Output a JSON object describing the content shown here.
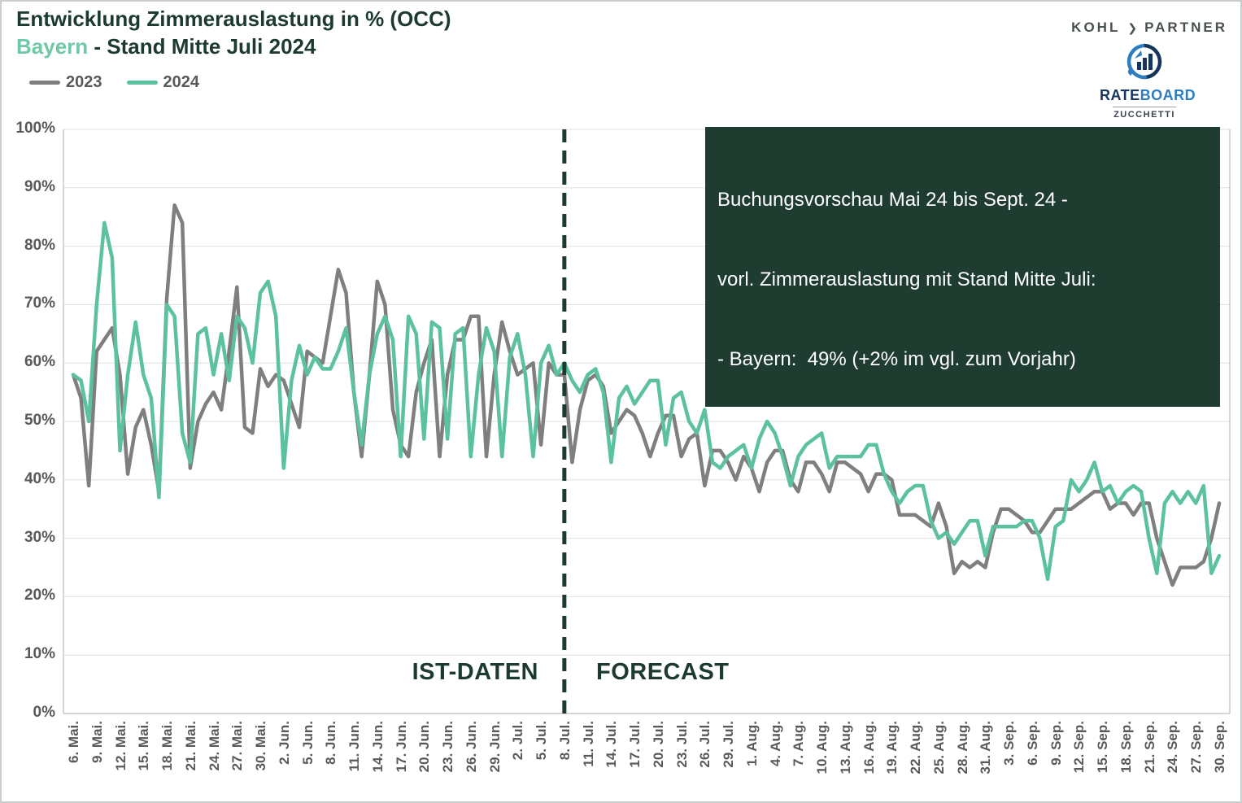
{
  "header": {
    "title": "Entwicklung Zimmerauslastung in % (OCC)",
    "subtitle_region": "Bayern",
    "subtitle_rest": " - Stand Mitte Juli 2024"
  },
  "legend": [
    {
      "label": "2023",
      "color": "#7F7F7F"
    },
    {
      "label": "2024",
      "color": "#5BC19E"
    }
  ],
  "brand": {
    "kohl_word1": "KOHL",
    "kohl_arrow": "❯",
    "kohl_word2": "PARTNER",
    "rateboard_rate": "RATE",
    "rateboard_board": "BOARD",
    "zucchetti": "ZUCCHETTI"
  },
  "annotation": {
    "lines": [
      "Buchungsvorschau Mai 24 bis Sept. 24 -",
      "vorl. Zimmerauslastung mit Stand Mitte Juli:",
      "- Bayern:  49% (+2% im vgl. zum Vorjahr)"
    ]
  },
  "zones": {
    "left_label": "IST-DATEN",
    "right_label": "FORECAST"
  },
  "colors": {
    "accent-dark": "#1C3B2E",
    "accent-light": "#70C8A6",
    "annotation-bg": "#1E3C30",
    "annotation-fg": "#FFFFFF",
    "grid": "#DFDFDF",
    "axis": "#C9C9C9",
    "tick-text": "#595959"
  },
  "chart_data": {
    "type": "line",
    "title": "Entwicklung Zimmerauslastung in % (OCC) - Bayern - Stand Mitte Juli 2024",
    "ylabel": "Zimmerauslastung (OCC)",
    "y_suffix": "%",
    "ylim": [
      0,
      100
    ],
    "y_tick_step": 10,
    "grid": true,
    "legend_position": "top-left",
    "x_start_date": "6. Mai.",
    "x_end_date": "30. Sep.",
    "x_tick_interval_days": 3,
    "x_tick_labels": [
      "6. Mai.",
      "9. Mai.",
      "12. Mai.",
      "15. Mai.",
      "18. Mai.",
      "21. Mai.",
      "24. Mai.",
      "27. Mai.",
      "30. Mai.",
      "2. Jun.",
      "5. Jun.",
      "8. Jun.",
      "11. Jun.",
      "14. Jun.",
      "17. Jun.",
      "20. Jun.",
      "23. Jun.",
      "26. Jun.",
      "29. Jun.",
      "2. Jul.",
      "5. Jul.",
      "8. Jul.",
      "11. Jul.",
      "14. Jul.",
      "17. Jul.",
      "20. Jul.",
      "23. Jul.",
      "26. Jul.",
      "29. Jul.",
      "1. Aug.",
      "4. Aug.",
      "7. Aug.",
      "10. Aug.",
      "13. Aug.",
      "16. Aug.",
      "19. Aug.",
      "22. Aug.",
      "25. Aug.",
      "28. Aug.",
      "31. Aug.",
      "3. Sep.",
      "6. Sep.",
      "9. Sep.",
      "12. Sep.",
      "15. Sep.",
      "18. Sep.",
      "21. Sep.",
      "24. Sep.",
      "27. Sep.",
      "30. Sep."
    ],
    "forecast_divider": {
      "x_label": "8. Jul.",
      "day_index": 63,
      "left_zone": "IST-DATEN",
      "right_zone": "FORECAST"
    },
    "series": [
      {
        "name": "2023",
        "color": "#7F7F7F",
        "values": [
          58,
          54,
          39,
          62,
          64,
          66,
          58,
          41,
          49,
          52,
          46,
          38,
          71,
          87,
          84,
          42,
          50,
          53,
          55,
          52,
          62,
          73,
          49,
          48,
          59,
          56,
          58,
          57,
          53,
          49,
          62,
          61,
          60,
          68,
          76,
          72,
          55,
          44,
          58,
          74,
          70,
          52,
          46,
          44,
          55,
          60,
          64,
          44,
          58,
          64,
          64,
          68,
          68,
          44,
          58,
          67,
          62,
          58,
          59,
          60,
          46,
          60,
          58,
          58,
          43,
          52,
          57,
          58,
          56,
          48,
          50,
          52,
          51,
          48,
          44,
          48,
          51,
          51,
          44,
          47,
          48,
          39,
          45,
          45,
          43,
          40,
          44,
          42,
          38,
          43,
          45,
          45,
          40,
          38,
          43,
          43,
          41,
          38,
          43,
          43,
          42,
          41,
          38,
          41,
          41,
          40,
          34,
          34,
          34,
          33,
          32,
          36,
          32,
          24,
          26,
          25,
          26,
          25,
          31,
          35,
          35,
          34,
          33,
          31,
          31,
          33,
          35,
          35,
          35,
          36,
          37,
          38,
          38,
          35,
          36,
          36,
          34,
          36,
          36,
          30,
          26,
          22,
          25,
          25,
          25,
          26,
          30,
          36
        ]
      },
      {
        "name": "2024",
        "color": "#5BC19E",
        "values": [
          58,
          57,
          50,
          70,
          84,
          78,
          45,
          58,
          67,
          58,
          54,
          37,
          70,
          68,
          48,
          43,
          65,
          66,
          58,
          65,
          57,
          68,
          66,
          60,
          72,
          74,
          68,
          42,
          57,
          63,
          58,
          61,
          59,
          59,
          62,
          66,
          55,
          46,
          58,
          65,
          68,
          64,
          44,
          68,
          65,
          47,
          67,
          66,
          47,
          65,
          66,
          44,
          58,
          66,
          62,
          44,
          61,
          65,
          58,
          44,
          60,
          63,
          58,
          60,
          57,
          55,
          58,
          59,
          55,
          43,
          54,
          56,
          53,
          55,
          57,
          57,
          46,
          54,
          55,
          50,
          48,
          52,
          43,
          42,
          44,
          45,
          46,
          42,
          47,
          50,
          48,
          44,
          39,
          44,
          46,
          47,
          48,
          42,
          44,
          44,
          44,
          44,
          46,
          46,
          41,
          38,
          36,
          38,
          39,
          39,
          33,
          30,
          31,
          29,
          31,
          33,
          33,
          27,
          32,
          32,
          32,
          32,
          33,
          33,
          30,
          23,
          32,
          33,
          40,
          38,
          40,
          43,
          38,
          39,
          36,
          38,
          39,
          38,
          30,
          24,
          36,
          38,
          36,
          38,
          36,
          39,
          24,
          27
        ]
      }
    ]
  }
}
